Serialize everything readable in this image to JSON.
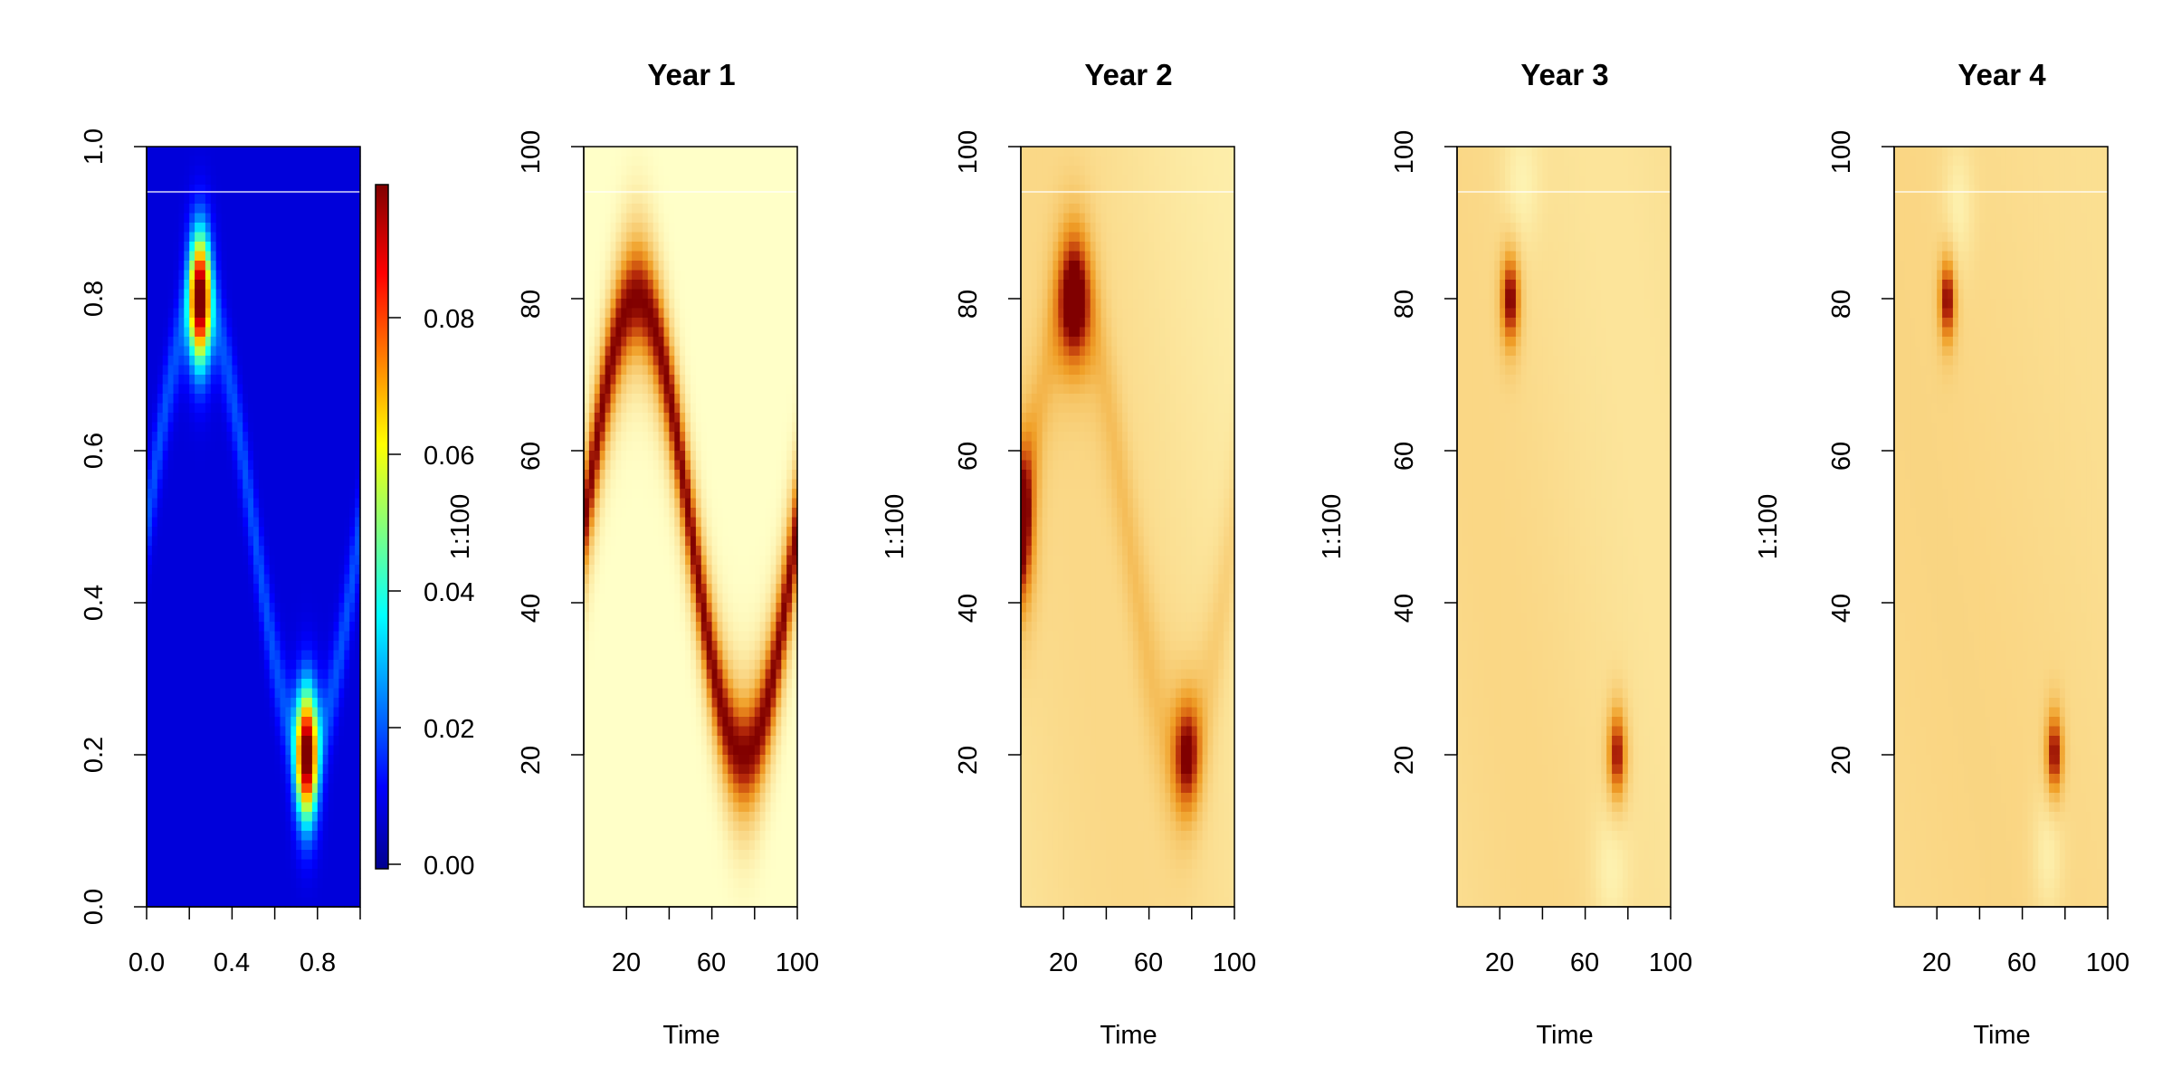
{
  "chart_data": [
    {
      "type": "heatmap",
      "title": "",
      "xlabel": "",
      "ylabel": "",
      "xlim": [
        0,
        1
      ],
      "ylim": [
        0,
        1
      ],
      "x_ticks": [
        "0.0",
        "0.4",
        "0.8"
      ],
      "y_ticks": [
        "0.0",
        "0.2",
        "0.4",
        "0.6",
        "0.8",
        "1.0"
      ],
      "colorscale": "blue-cyan-yellow-red",
      "colorbar": {
        "label": "1:100",
        "range": [
          0,
          0.1
        ],
        "ticks": [
          "0.00",
          "0.02",
          "0.04",
          "0.06",
          "0.08"
        ]
      },
      "surface": {
        "description_values": "two peaks",
        "peaks": [
          {
            "x": 0.25,
            "y": 0.8,
            "value": 0.098
          },
          {
            "x": 0.75,
            "y": 0.2,
            "value": 0.098
          }
        ],
        "ridge": "sinusoidal ridge y = 0.5 + 0.3*sin(2*pi*x)"
      }
    },
    {
      "type": "heatmap",
      "title": "Year 1",
      "xlabel": "Time",
      "ylabel": "1:100",
      "xlim": [
        0,
        100
      ],
      "ylim": [
        0,
        100
      ],
      "x_ticks": [
        "20",
        "60",
        "100"
      ],
      "y_ticks": [
        "20",
        "40",
        "60",
        "80",
        "100"
      ],
      "colorscale": "heat",
      "surface": {
        "ridge": "y = 50 + 30*sin(2*pi*t/100)",
        "peaks": [
          {
            "x": 25,
            "y": 80
          },
          {
            "x": 75,
            "y": 20
          }
        ]
      }
    },
    {
      "type": "heatmap",
      "title": "Year 2",
      "xlabel": "Time",
      "ylabel": "1:100",
      "xlim": [
        0,
        100
      ],
      "ylim": [
        0,
        100
      ],
      "x_ticks": [
        "20",
        "60",
        "100"
      ],
      "y_ticks": [
        "20",
        "40",
        "60",
        "80",
        "100"
      ],
      "colorscale": "heat",
      "surface": {
        "peaks": [
          {
            "x": 25,
            "y": 80
          },
          {
            "x": 78,
            "y": 20
          },
          {
            "x": 2,
            "y": 50
          }
        ]
      }
    },
    {
      "type": "heatmap",
      "title": "Year 3",
      "xlabel": "Time",
      "ylabel": "1:100",
      "xlim": [
        0,
        100
      ],
      "ylim": [
        0,
        100
      ],
      "x_ticks": [
        "20",
        "60",
        "100"
      ],
      "y_ticks": [
        "20",
        "40",
        "60",
        "80",
        "100"
      ],
      "colorscale": "heat",
      "surface": {
        "peaks": [
          {
            "x": 25,
            "y": 80
          },
          {
            "x": 75,
            "y": 20
          }
        ]
      }
    },
    {
      "type": "heatmap",
      "title": "Year 4",
      "xlabel": "Time",
      "ylabel": "1:100",
      "xlim": [
        0,
        100
      ],
      "ylim": [
        0,
        100
      ],
      "x_ticks": [
        "20",
        "60",
        "100"
      ],
      "y_ticks": [
        "20",
        "40",
        "60",
        "80",
        "100"
      ],
      "colorscale": "heat",
      "surface": {
        "peaks": [
          {
            "x": 25,
            "y": 80
          },
          {
            "x": 75,
            "y": 20
          }
        ]
      }
    }
  ]
}
